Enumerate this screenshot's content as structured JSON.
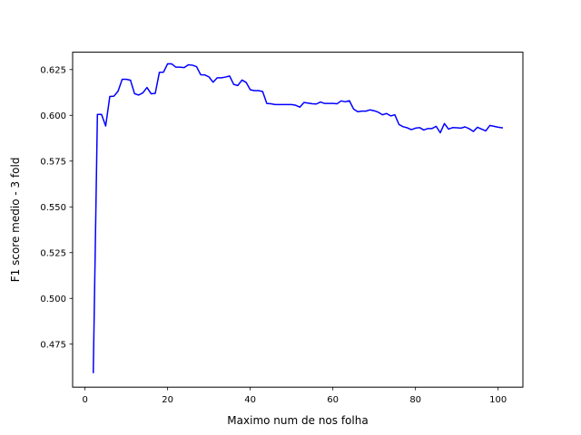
{
  "colors": {
    "line": "#0000ff",
    "axes": "#000000",
    "background": "#ffffff"
  },
  "chart_data": {
    "type": "line",
    "title": "",
    "xlabel": "Maximo num de nos folha",
    "ylabel": "F1 score medio - 3 fold",
    "xlim": [
      -3.0,
      106.0
    ],
    "ylim": [
      0.4515,
      0.6345
    ],
    "xticks": [
      0,
      20,
      40,
      60,
      80,
      100
    ],
    "xtick_labels": [
      "0",
      "20",
      "40",
      "60",
      "80",
      "100"
    ],
    "yticks": [
      0.475,
      0.5,
      0.525,
      0.55,
      0.575,
      0.6,
      0.625
    ],
    "ytick_labels": [
      "0.475",
      "0.500",
      "0.525",
      "0.550",
      "0.575",
      "0.600",
      "0.625"
    ],
    "grid": false,
    "legend": "none",
    "series": [
      {
        "color": "#0000ff",
        "x": [
          2,
          3,
          4,
          5,
          6,
          7,
          8,
          9,
          10,
          11,
          12,
          13,
          14,
          15,
          16,
          17,
          18,
          19,
          20,
          21,
          22,
          23,
          24,
          25,
          26,
          27,
          28,
          29,
          30,
          31,
          32,
          33,
          34,
          35,
          36,
          37,
          38,
          39,
          40,
          41,
          42,
          43,
          44,
          45,
          46,
          47,
          48,
          49,
          50,
          51,
          52,
          53,
          54,
          55,
          56,
          57,
          58,
          59,
          60,
          61,
          62,
          63,
          64,
          65,
          66,
          67,
          68,
          69,
          70,
          71,
          72,
          73,
          74,
          75,
          76,
          77,
          78,
          79,
          80,
          81,
          82,
          83,
          84,
          85,
          86,
          87,
          88,
          89,
          90,
          91,
          92,
          93,
          94,
          95,
          96,
          97,
          98,
          99,
          100,
          101
        ],
        "y": [
          0.4595,
          0.6005,
          0.6005,
          0.5942,
          0.6103,
          0.6105,
          0.6132,
          0.6197,
          0.6197,
          0.6192,
          0.6118,
          0.6111,
          0.6123,
          0.6152,
          0.6118,
          0.612,
          0.6235,
          0.6236,
          0.6282,
          0.6281,
          0.6263,
          0.6263,
          0.6261,
          0.6276,
          0.6274,
          0.6266,
          0.6222,
          0.6221,
          0.621,
          0.6181,
          0.6205,
          0.6205,
          0.6209,
          0.6215,
          0.6169,
          0.6163,
          0.6193,
          0.618,
          0.614,
          0.6135,
          0.6135,
          0.613,
          0.6065,
          0.6063,
          0.6059,
          0.6059,
          0.6059,
          0.6059,
          0.6059,
          0.6055,
          0.6045,
          0.607,
          0.6067,
          0.6063,
          0.6062,
          0.6073,
          0.6065,
          0.6065,
          0.6065,
          0.6063,
          0.6079,
          0.6074,
          0.608,
          0.6035,
          0.602,
          0.6023,
          0.6023,
          0.603,
          0.6025,
          0.6017,
          0.6003,
          0.601,
          0.5997,
          0.6003,
          0.595,
          0.5938,
          0.5932,
          0.5922,
          0.593,
          0.5933,
          0.592,
          0.5928,
          0.5928,
          0.594,
          0.5905,
          0.5955,
          0.5925,
          0.5933,
          0.5932,
          0.593,
          0.5937,
          0.5927,
          0.5912,
          0.5935,
          0.5925,
          0.5915,
          0.5945,
          0.594,
          0.5935,
          0.5932
        ]
      }
    ]
  }
}
